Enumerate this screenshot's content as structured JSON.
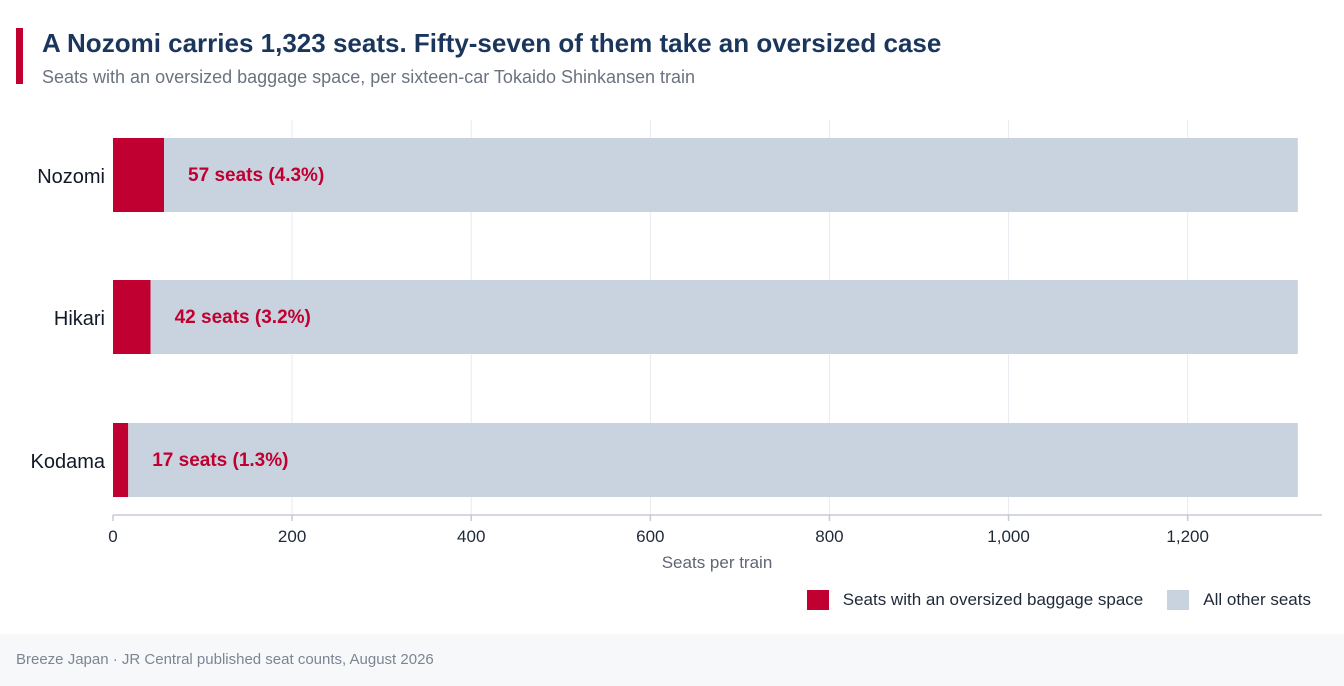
{
  "header": {
    "title": "A Nozomi carries 1,323 seats. Fifty-seven of them take an oversized case",
    "subtitle": "Seats with an oversized baggage space, per sixteen-car Tokaido Shinkansen train"
  },
  "chart_data": {
    "type": "bar",
    "orientation": "horizontal",
    "stacked": true,
    "categories": [
      "Nozomi",
      "Hikari",
      "Kodama"
    ],
    "series": [
      {
        "name": "Seats with an oversized baggage space",
        "values": [
          57,
          42,
          17
        ],
        "color": "#bf0030"
      },
      {
        "name": "All other seats",
        "values": [
          1266,
          1281,
          1306
        ],
        "color": "#c8d3df"
      }
    ],
    "data_labels": [
      "57 seats (4.3%)",
      "42 seats (3.2%)",
      "17 seats (1.3%)"
    ],
    "xlabel": "Seats per train",
    "ylabel": "",
    "xlim": [
      0,
      1350
    ],
    "xticks": [
      0,
      200,
      400,
      600,
      800,
      1000,
      1200
    ],
    "xtick_labels": [
      "0",
      "200",
      "400",
      "600",
      "800",
      "1,000",
      "1,200"
    ],
    "grid": "vertical",
    "legend_position": "bottom-right"
  },
  "colors": {
    "accent": "#bf0030",
    "title": "#1b365d",
    "other_seats": "#c8d3df",
    "grid": "#e8ebef"
  },
  "legend": {
    "items": [
      {
        "label": "Seats with an oversized baggage space",
        "color": "#bf0030"
      },
      {
        "label": "All other seats",
        "color": "#c8d3df"
      }
    ]
  },
  "footer": {
    "source": "Breeze Japan · JR Central published seat counts, August 2026"
  }
}
